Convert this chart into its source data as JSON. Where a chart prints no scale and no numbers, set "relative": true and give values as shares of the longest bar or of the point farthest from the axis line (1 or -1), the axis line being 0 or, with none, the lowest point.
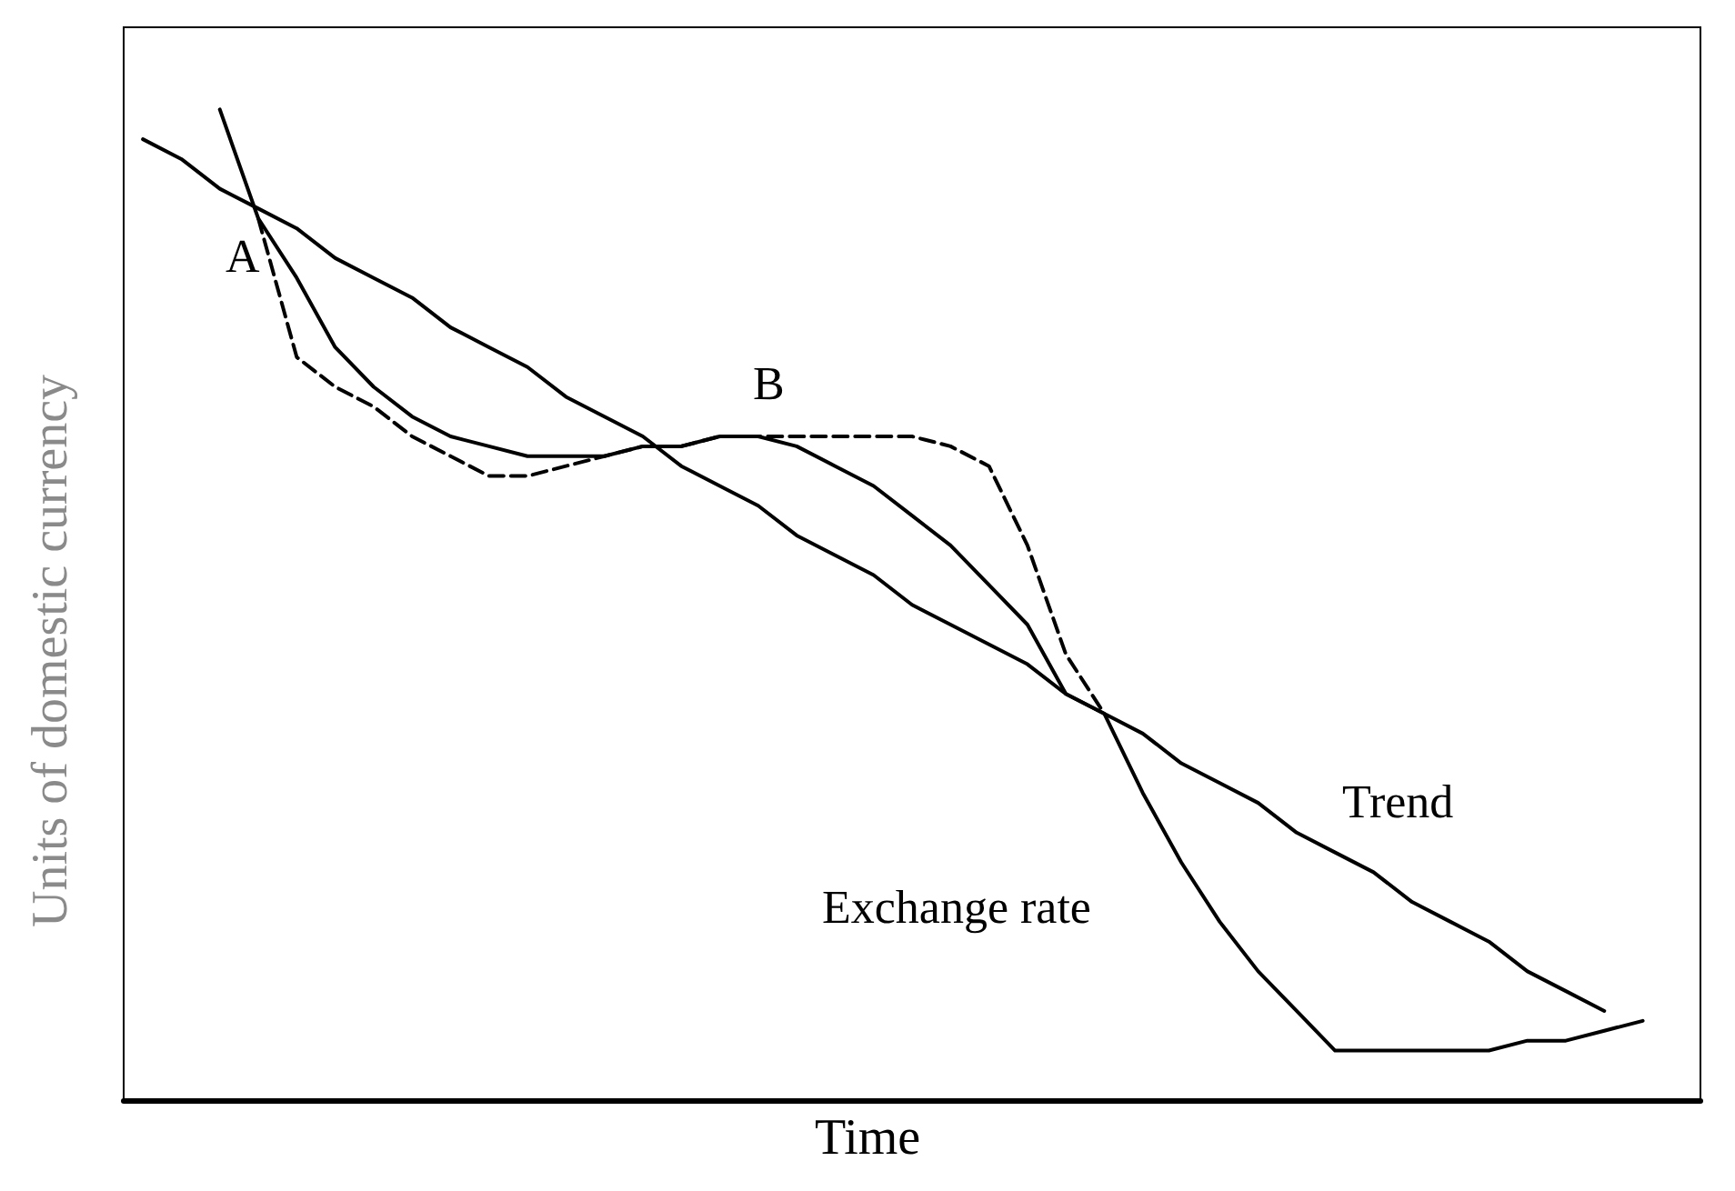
{
  "chart_data": {
    "type": "line",
    "xlabel": "Time",
    "ylabel": "Units of domestic currency",
    "relative": true,
    "grid": false,
    "legend": false,
    "marker": "none",
    "categories": [
      null,
      null,
      null,
      null,
      null,
      null,
      null,
      null,
      null,
      null,
      null,
      null,
      null,
      null,
      null,
      null,
      null,
      null,
      null,
      null,
      null,
      null,
      null,
      null,
      null,
      null,
      null,
      null,
      null,
      null,
      null,
      null,
      null,
      null,
      null,
      null,
      null,
      null,
      null,
      null,
      null
    ],
    "series": [
      {
        "name": "Trend",
        "color": "#000000",
        "line_style": "solid",
        "values": [
          0.97,
          0.95,
          0.92,
          0.9,
          0.88,
          0.85,
          0.83,
          0.81,
          0.78,
          0.76,
          0.74,
          0.71,
          0.69,
          0.67,
          0.64,
          0.62,
          0.6,
          0.57,
          0.55,
          0.53,
          0.5,
          0.48,
          0.46,
          0.44,
          0.41,
          0.39,
          0.37,
          0.34,
          0.32,
          0.3,
          0.27,
          0.25,
          0.23,
          0.2,
          0.18,
          0.16,
          0.13,
          0.11,
          0.09,
          null,
          null
        ]
      },
      {
        "name": "Exchange rate",
        "color": "#000000",
        "line_style": "solid",
        "values": [
          null,
          null,
          1,
          0.89,
          0.83,
          0.76,
          0.72,
          0.69,
          0.67,
          0.66,
          0.65,
          0.65,
          0.65,
          0.66,
          0.66,
          0.67,
          0.67,
          0.66,
          0.64,
          0.62,
          0.59,
          0.56,
          0.52,
          0.48,
          0.41,
          0.39,
          0.31,
          0.24,
          0.18,
          0.13,
          0.09,
          0.05,
          0.05,
          0.05,
          0.05,
          0.05,
          0.06,
          0.06,
          0.07,
          0.08,
          null
        ]
      },
      {
        "color": "#000000",
        "line_style": "dashed",
        "values": [
          null,
          null,
          null,
          0.89,
          0.75,
          0.72,
          0.7,
          0.67,
          0.65,
          0.63,
          0.63,
          0.64,
          0.65,
          0.66,
          0.66,
          0.67,
          0.67,
          0.67,
          0.67,
          0.67,
          0.67,
          0.66,
          0.64,
          0.56,
          0.45,
          0.39,
          null,
          null,
          null,
          null,
          null,
          null,
          null,
          null,
          null,
          null,
          null,
          null,
          null,
          null,
          null
        ]
      }
    ],
    "annotations": [
      "A",
      "B"
    ]
  }
}
